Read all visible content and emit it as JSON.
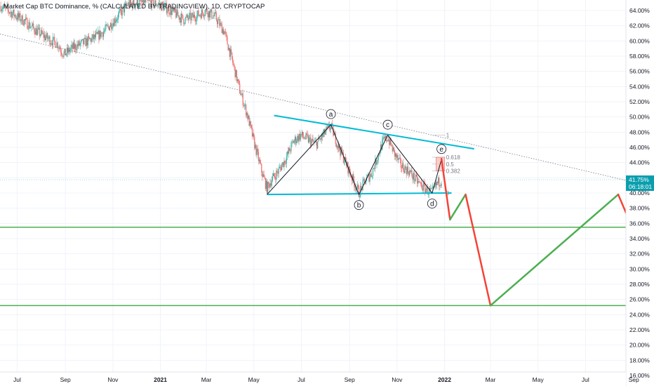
{
  "chart_data": {
    "type": "candlestick",
    "title": "Market Cap BTC Dominance, % (CALCULATED BY TRADINGVIEW), 1D, CRYPTOCAP",
    "xlabel": "",
    "ylabel": "",
    "x_ticks": [
      {
        "label": "Jul",
        "date": "2020-07-01"
      },
      {
        "label": "Sep",
        "date": "2020-09-01"
      },
      {
        "label": "Nov",
        "date": "2020-11-01"
      },
      {
        "label": "2021",
        "date": "2021-01-01"
      },
      {
        "label": "Mar",
        "date": "2021-03-01"
      },
      {
        "label": "May",
        "date": "2021-05-01"
      },
      {
        "label": "Jul",
        "date": "2021-07-01"
      },
      {
        "label": "Sep",
        "date": "2021-09-01"
      },
      {
        "label": "Nov",
        "date": "2021-11-01"
      },
      {
        "label": "2022",
        "date": "2022-01-01"
      },
      {
        "label": "Mar",
        "date": "2022-03-01"
      },
      {
        "label": "May",
        "date": "2022-05-01"
      },
      {
        "label": "Jul",
        "date": "2022-07-01"
      },
      {
        "label": "Sep",
        "date": "2022-09-01"
      }
    ],
    "y_ticks": [
      "64.00%",
      "62.00%",
      "60.00%",
      "58.00%",
      "56.00%",
      "54.00%",
      "52.00%",
      "50.00%",
      "48.00%",
      "46.00%",
      "44.00%",
      "42.00%",
      "40.00%",
      "38.00%",
      "36.00%",
      "34.00%",
      "32.00%",
      "30.00%",
      "28.00%",
      "26.00%",
      "24.00%",
      "22.00%",
      "20.00%",
      "18.00%",
      "16.00%"
    ],
    "y_tick_values": [
      64,
      62,
      60,
      58,
      56,
      54,
      52,
      50,
      48,
      46,
      44,
      42,
      40,
      38,
      36,
      34,
      32,
      30,
      28,
      26,
      24,
      22,
      20,
      18,
      16
    ],
    "ylim": [
      14.8,
      65.2
    ],
    "xlim": [
      "2020-06-09",
      "2022-09-27"
    ],
    "price_path": [
      [
        "2020-06-10",
        64.6
      ],
      [
        "2020-06-28",
        63.4
      ],
      [
        "2020-07-12",
        62.5
      ],
      [
        "2020-07-26",
        61.3
      ],
      [
        "2020-08-08",
        60.4
      ],
      [
        "2020-08-22",
        59.6
      ],
      [
        "2020-08-30",
        58.2
      ],
      [
        "2020-09-12",
        59.2
      ],
      [
        "2020-09-26",
        59.8
      ],
      [
        "2020-10-12",
        60.6
      ],
      [
        "2020-10-24",
        61.6
      ],
      [
        "2020-11-07",
        63.2
      ],
      [
        "2020-11-20",
        64.8
      ],
      [
        "2020-12-06",
        65.0
      ],
      [
        "2020-12-20",
        65.1
      ],
      [
        "2021-01-04",
        64.6
      ],
      [
        "2021-01-17",
        63.8
      ],
      [
        "2021-01-31",
        62.8
      ],
      [
        "2021-02-14",
        63.2
      ],
      [
        "2021-02-28",
        64.0
      ],
      [
        "2021-03-12",
        63.2
      ],
      [
        "2021-03-24",
        61.2
      ],
      [
        "2021-04-03",
        57.5
      ],
      [
        "2021-04-13",
        53.5
      ],
      [
        "2021-04-22",
        50.5
      ],
      [
        "2021-05-03",
        46.0
      ],
      [
        "2021-05-12",
        42.5
      ],
      [
        "2021-05-18",
        40.6
      ],
      [
        "2021-05-24",
        41.8
      ],
      [
        "2021-06-01",
        42.8
      ],
      [
        "2021-06-11",
        44.5
      ],
      [
        "2021-06-21",
        46.8
      ],
      [
        "2021-06-30",
        47.6
      ],
      [
        "2021-07-10",
        47.0
      ],
      [
        "2021-07-20",
        46.4
      ],
      [
        "2021-08-01",
        48.0
      ],
      [
        "2021-08-08",
        48.8
      ],
      [
        "2021-08-16",
        46.5
      ],
      [
        "2021-08-26",
        44.2
      ],
      [
        "2021-09-05",
        41.8
      ],
      [
        "2021-09-13",
        40.0
      ],
      [
        "2021-09-21",
        41.6
      ],
      [
        "2021-09-29",
        42.5
      ],
      [
        "2021-10-07",
        44.8
      ],
      [
        "2021-10-14",
        46.8
      ],
      [
        "2021-10-20",
        47.3
      ],
      [
        "2021-10-28",
        45.3
      ],
      [
        "2021-11-06",
        43.6
      ],
      [
        "2021-11-16",
        42.9
      ],
      [
        "2021-11-26",
        41.6
      ],
      [
        "2021-12-04",
        40.8
      ],
      [
        "2021-12-12",
        40.2
      ],
      [
        "2021-12-16",
        40.0
      ],
      [
        "2021-12-22",
        41.2
      ],
      [
        "2021-12-28",
        41.75
      ]
    ],
    "annotations": {
      "downtrend_line": [
        [
          "2020-06-09",
          60.9
        ],
        [
          "2022-09-27",
          40.8
        ]
      ],
      "triangle_upper": [
        [
          "2021-05-27",
          50.2
        ],
        [
          "2022-02-08",
          45.8
        ]
      ],
      "triangle_lower": [
        [
          "2021-05-18",
          39.8
        ],
        [
          "2022-01-10",
          40.0
        ]
      ],
      "wave_points": [
        {
          "label": "a",
          "date": "2021-08-08",
          "value": 49.0
        },
        {
          "label": "b",
          "date": "2021-09-13",
          "value": 39.8
        },
        {
          "label": "c",
          "date": "2021-10-20",
          "value": 47.6
        },
        {
          "label": "d",
          "date": "2021-12-16",
          "value": 40.0
        },
        {
          "label": "e",
          "date": "2021-12-28",
          "value": 44.4
        }
      ],
      "fib_levels": [
        {
          "label": "1",
          "value": 47.6
        },
        {
          "label": "0.618",
          "value": 44.7
        },
        {
          "label": "0.5",
          "value": 43.8
        },
        {
          "label": "0.382",
          "value": 42.9
        },
        {
          "label": "0",
          "value": 40.0
        }
      ],
      "horizontal_levels": [
        35.5,
        25.2
      ],
      "projection_path": [
        [
          "2021-12-28",
          44.5
        ],
        [
          "2022-01-08",
          36.5
        ],
        [
          "2022-01-28",
          39.8
        ],
        [
          "2022-03-01",
          25.2
        ],
        [
          "2022-08-12",
          39.8
        ],
        [
          "2022-08-30",
          35.5
        ]
      ],
      "current_value": {
        "value": 41.75,
        "label": "41.75%",
        "countdown": "06:18:01"
      }
    },
    "grid": true,
    "legend": "none"
  }
}
